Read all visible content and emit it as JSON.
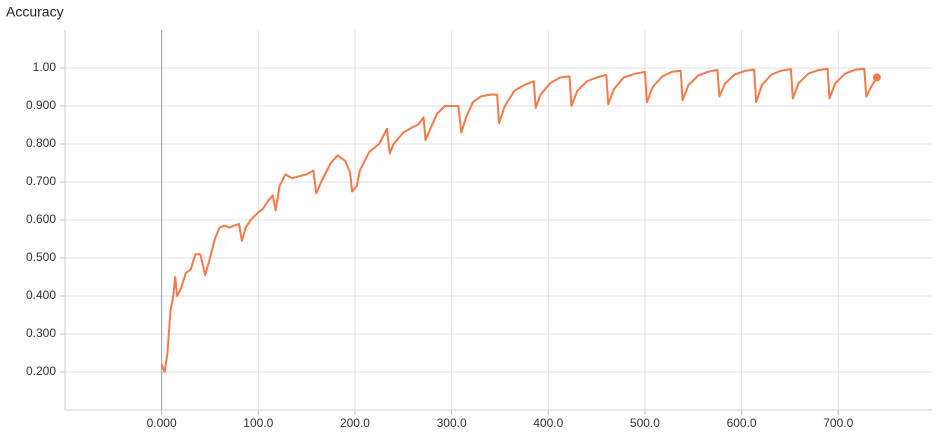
{
  "chart_data": {
    "type": "line",
    "title": "Accuracy",
    "grid": true,
    "xlim": [
      -100,
      797
    ],
    "ylim": [
      0.1,
      1.1
    ],
    "xticks": [
      {
        "value": 0,
        "label": "0.000"
      },
      {
        "value": 100,
        "label": "100.0"
      },
      {
        "value": 200,
        "label": "200.0"
      },
      {
        "value": 300,
        "label": "300.0"
      },
      {
        "value": 400,
        "label": "400.0"
      },
      {
        "value": 500,
        "label": "500.0"
      },
      {
        "value": 600,
        "label": "600.0"
      },
      {
        "value": 700,
        "label": "700.0"
      }
    ],
    "yticks": [
      {
        "value": 0.2,
        "label": "0.200"
      },
      {
        "value": 0.3,
        "label": "0.300"
      },
      {
        "value": 0.4,
        "label": "0.400"
      },
      {
        "value": 0.5,
        "label": "0.500"
      },
      {
        "value": 0.6,
        "label": "0.600"
      },
      {
        "value": 0.7,
        "label": "0.700"
      },
      {
        "value": 0.8,
        "label": "0.800"
      },
      {
        "value": 0.9,
        "label": "0.900"
      },
      {
        "value": 1,
        "label": "1.00"
      }
    ],
    "x": [
      0,
      3,
      6,
      9,
      12,
      14,
      16,
      20,
      25,
      30,
      35,
      40,
      45,
      50,
      55,
      60,
      65,
      70,
      75,
      80,
      83,
      87,
      92,
      100,
      105,
      110,
      115,
      118,
      122,
      128,
      135,
      142,
      150,
      157,
      160,
      165,
      175,
      182,
      190,
      195,
      197,
      202,
      205,
      215,
      225,
      233,
      236,
      240,
      250,
      260,
      265,
      271,
      273,
      278,
      285,
      293,
      300,
      307,
      310,
      315,
      322,
      330,
      340,
      347,
      349,
      355,
      365,
      375,
      385,
      387,
      392,
      402,
      412,
      422,
      424,
      430,
      440,
      450,
      460,
      462,
      468,
      478,
      490,
      500,
      502,
      508,
      518,
      528,
      537,
      539,
      545,
      555,
      565,
      575,
      577,
      583,
      593,
      603,
      613,
      615,
      621,
      631,
      641,
      651,
      653,
      659,
      669,
      679,
      689,
      691,
      697,
      707,
      717,
      727,
      729,
      735,
      740
    ],
    "series": [
      {
        "name": "Accuracy",
        "color": "#f47a4a",
        "values": [
          0.22,
          0.2,
          0.25,
          0.36,
          0.4,
          0.45,
          0.4,
          0.42,
          0.46,
          0.47,
          0.51,
          0.51,
          0.455,
          0.5,
          0.55,
          0.58,
          0.585,
          0.58,
          0.585,
          0.59,
          0.545,
          0.58,
          0.6,
          0.62,
          0.63,
          0.65,
          0.665,
          0.625,
          0.69,
          0.72,
          0.71,
          0.715,
          0.72,
          0.73,
          0.67,
          0.7,
          0.75,
          0.77,
          0.755,
          0.725,
          0.675,
          0.69,
          0.73,
          0.78,
          0.8,
          0.84,
          0.775,
          0.8,
          0.83,
          0.845,
          0.85,
          0.87,
          0.81,
          0.84,
          0.88,
          0.9,
          0.9,
          0.9,
          0.83,
          0.87,
          0.91,
          0.925,
          0.93,
          0.93,
          0.855,
          0.9,
          0.94,
          0.955,
          0.965,
          0.895,
          0.93,
          0.96,
          0.975,
          0.978,
          0.9,
          0.94,
          0.965,
          0.975,
          0.982,
          0.905,
          0.945,
          0.975,
          0.985,
          0.99,
          0.91,
          0.95,
          0.978,
          0.99,
          0.993,
          0.915,
          0.955,
          0.98,
          0.99,
          0.995,
          0.925,
          0.96,
          0.983,
          0.992,
          0.996,
          0.91,
          0.955,
          0.983,
          0.993,
          0.997,
          0.92,
          0.96,
          0.985,
          0.994,
          0.998,
          0.92,
          0.96,
          0.985,
          0.995,
          0.998,
          0.925,
          0.955,
          0.975
        ]
      }
    ]
  }
}
